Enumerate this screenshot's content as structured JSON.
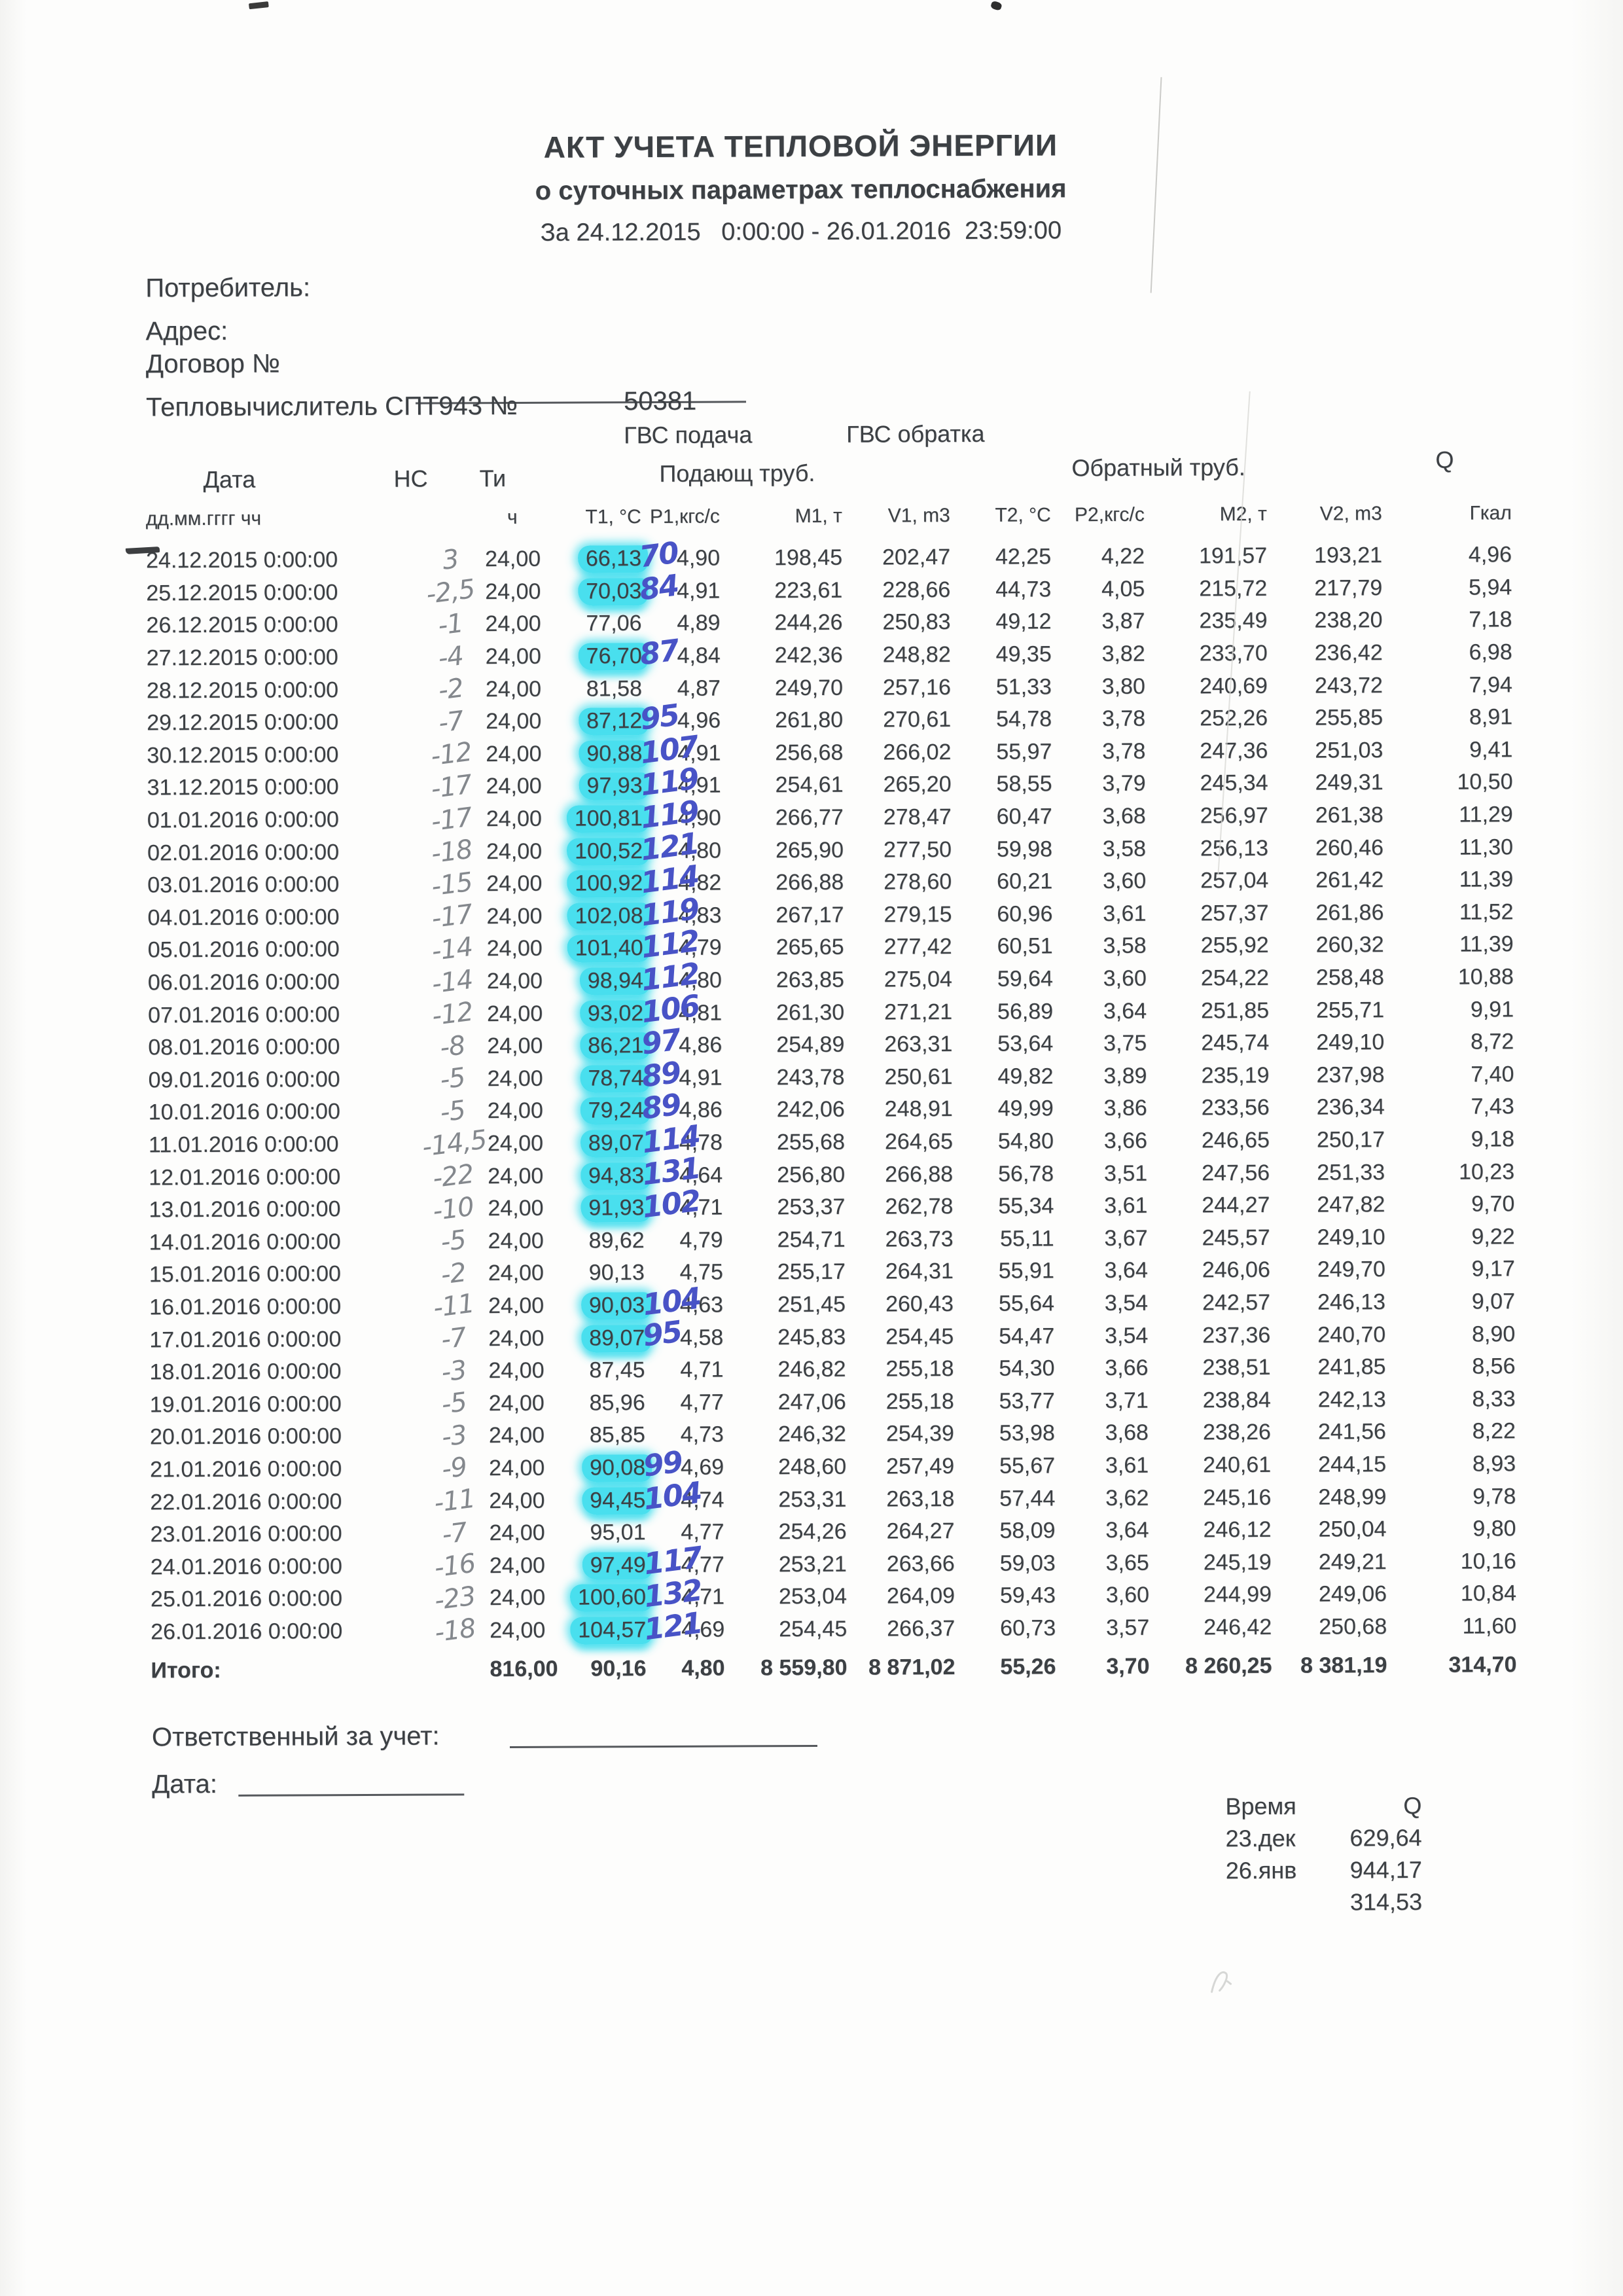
{
  "header": {
    "title": "АКТ УЧЕТА ТЕПЛОВОЙ ЭНЕРГИИ",
    "subtitle": "о суточных параметрах теплоснабжения",
    "period": "За 24.12.2015   0:00:00 - 26.01.2016  23:59:00"
  },
  "info": {
    "consumer_label": "Потребитель:",
    "address_label": "Адрес:",
    "contract_label": "Договор №",
    "calculator_label": "Тепловычислитель СПТ943 №",
    "calculator_number": "50381",
    "gvs_supply": "ГВС подача",
    "gvs_return": "ГВС обратка"
  },
  "table": {
    "group_headers": {
      "date": "Дата",
      "ns": "НС",
      "ti": "Ти",
      "supply": "Подающ труб.",
      "return": "Обратный труб.",
      "q": "Q"
    },
    "unit_headers": {
      "date": "дд.мм.гггг чч",
      "ti": "ч",
      "t1": "Т1, °С",
      "p1": "Р1,кгс/с",
      "m1": "М1, т",
      "v1": "V1, m3",
      "t2": "Т2, °С",
      "p2": "Р2,кгс/с",
      "m2": "М2, т",
      "v2": "V2, m3",
      "q": "Гкал"
    },
    "rows": [
      {
        "date": "24.12.2015 0:00:00",
        "ns": "3",
        "ti": "24,00",
        "t1": "66,13",
        "hl": true,
        "note": "70",
        "p1": "4,90",
        "m1": "198,45",
        "v1": "202,47",
        "t2": "42,25",
        "p2": "4,22",
        "m2": "191,57",
        "v2": "193,21",
        "q": "4,96"
      },
      {
        "date": "25.12.2015 0:00:00",
        "ns": "-2,5",
        "ti": "24,00",
        "t1": "70,03",
        "hl": true,
        "note": "84",
        "p1": "4,91",
        "m1": "223,61",
        "v1": "228,66",
        "t2": "44,73",
        "p2": "4,05",
        "m2": "215,72",
        "v2": "217,79",
        "q": "5,94"
      },
      {
        "date": "26.12.2015 0:00:00",
        "ns": "-1",
        "ti": "24,00",
        "t1": "77,06",
        "hl": false,
        "note": "",
        "p1": "4,89",
        "m1": "244,26",
        "v1": "250,83",
        "t2": "49,12",
        "p2": "3,87",
        "m2": "235,49",
        "v2": "238,20",
        "q": "7,18"
      },
      {
        "date": "27.12.2015 0:00:00",
        "ns": "-4",
        "ti": "24,00",
        "t1": "76,70",
        "hl": true,
        "note": "87",
        "p1": "4,84",
        "m1": "242,36",
        "v1": "248,82",
        "t2": "49,35",
        "p2": "3,82",
        "m2": "233,70",
        "v2": "236,42",
        "q": "6,98"
      },
      {
        "date": "28.12.2015 0:00:00",
        "ns": "-2",
        "ti": "24,00",
        "t1": "81,58",
        "hl": false,
        "note": "",
        "p1": "4,87",
        "m1": "249,70",
        "v1": "257,16",
        "t2": "51,33",
        "p2": "3,80",
        "m2": "240,69",
        "v2": "243,72",
        "q": "7,94"
      },
      {
        "date": "29.12.2015 0:00:00",
        "ns": "-7",
        "ti": "24,00",
        "t1": "87,12",
        "hl": true,
        "note": "95",
        "p1": "4,96",
        "m1": "261,80",
        "v1": "270,61",
        "t2": "54,78",
        "p2": "3,78",
        "m2": "252,26",
        "v2": "255,85",
        "q": "8,91"
      },
      {
        "date": "30.12.2015 0:00:00",
        "ns": "-12",
        "ti": "24,00",
        "t1": "90,88",
        "hl": true,
        "note": "107",
        "p1": "4,91",
        "m1": "256,68",
        "v1": "266,02",
        "t2": "55,97",
        "p2": "3,78",
        "m2": "247,36",
        "v2": "251,03",
        "q": "9,41"
      },
      {
        "date": "31.12.2015 0:00:00",
        "ns": "-17",
        "ti": "24,00",
        "t1": "97,93",
        "hl": true,
        "note": "119",
        "p1": "4,91",
        "m1": "254,61",
        "v1": "265,20",
        "t2": "58,55",
        "p2": "3,79",
        "m2": "245,34",
        "v2": "249,31",
        "q": "10,50"
      },
      {
        "date": "01.01.2016 0:00:00",
        "ns": "-17",
        "ti": "24,00",
        "t1": "100,81",
        "hl": true,
        "note": "119",
        "p1": "4,90",
        "m1": "266,77",
        "v1": "278,47",
        "t2": "60,47",
        "p2": "3,68",
        "m2": "256,97",
        "v2": "261,38",
        "q": "11,29"
      },
      {
        "date": "02.01.2016 0:00:00",
        "ns": "-18",
        "ti": "24,00",
        "t1": "100,52",
        "hl": true,
        "note": "121",
        "p1": "4,80",
        "m1": "265,90",
        "v1": "277,50",
        "t2": "59,98",
        "p2": "3,58",
        "m2": "256,13",
        "v2": "260,46",
        "q": "11,30"
      },
      {
        "date": "03.01.2016 0:00:00",
        "ns": "-15",
        "ti": "24,00",
        "t1": "100,92",
        "hl": true,
        "note": "114",
        "p1": "4,82",
        "m1": "266,88",
        "v1": "278,60",
        "t2": "60,21",
        "p2": "3,60",
        "m2": "257,04",
        "v2": "261,42",
        "q": "11,39"
      },
      {
        "date": "04.01.2016 0:00:00",
        "ns": "-17",
        "ti": "24,00",
        "t1": "102,08",
        "hl": true,
        "note": "119",
        "p1": "4,83",
        "m1": "267,17",
        "v1": "279,15",
        "t2": "60,96",
        "p2": "3,61",
        "m2": "257,37",
        "v2": "261,86",
        "q": "11,52"
      },
      {
        "date": "05.01.2016 0:00:00",
        "ns": "-14",
        "ti": "24,00",
        "t1": "101,40",
        "hl": true,
        "note": "112",
        "p1": "4,79",
        "m1": "265,65",
        "v1": "277,42",
        "t2": "60,51",
        "p2": "3,58",
        "m2": "255,92",
        "v2": "260,32",
        "q": "11,39"
      },
      {
        "date": "06.01.2016 0:00:00",
        "ns": "-14",
        "ti": "24,00",
        "t1": "98,94",
        "hl": true,
        "note": "112",
        "p1": "4,80",
        "m1": "263,85",
        "v1": "275,04",
        "t2": "59,64",
        "p2": "3,60",
        "m2": "254,22",
        "v2": "258,48",
        "q": "10,88"
      },
      {
        "date": "07.01.2016 0:00:00",
        "ns": "-12",
        "ti": "24,00",
        "t1": "93,02",
        "hl": true,
        "note": "106",
        "p1": "4,81",
        "m1": "261,30",
        "v1": "271,21",
        "t2": "56,89",
        "p2": "3,64",
        "m2": "251,85",
        "v2": "255,71",
        "q": "9,91"
      },
      {
        "date": "08.01.2016 0:00:00",
        "ns": "-8",
        "ti": "24,00",
        "t1": "86,21",
        "hl": true,
        "note": "97",
        "p1": "4,86",
        "m1": "254,89",
        "v1": "263,31",
        "t2": "53,64",
        "p2": "3,75",
        "m2": "245,74",
        "v2": "249,10",
        "q": "8,72"
      },
      {
        "date": "09.01.2016 0:00:00",
        "ns": "-5",
        "ti": "24,00",
        "t1": "78,74",
        "hl": true,
        "note": "89",
        "p1": "4,91",
        "m1": "243,78",
        "v1": "250,61",
        "t2": "49,82",
        "p2": "3,89",
        "m2": "235,19",
        "v2": "237,98",
        "q": "7,40"
      },
      {
        "date": "10.01.2016 0:00:00",
        "ns": "-5",
        "ti": "24,00",
        "t1": "79,24",
        "hl": true,
        "note": "89",
        "p1": "4,86",
        "m1": "242,06",
        "v1": "248,91",
        "t2": "49,99",
        "p2": "3,86",
        "m2": "233,56",
        "v2": "236,34",
        "q": "7,43"
      },
      {
        "date": "11.01.2016 0:00:00",
        "ns": "-14,5",
        "ti": "24,00",
        "t1": "89,07",
        "hl": true,
        "note": "114",
        "p1": "4,78",
        "m1": "255,68",
        "v1": "264,65",
        "t2": "54,80",
        "p2": "3,66",
        "m2": "246,65",
        "v2": "250,17",
        "q": "9,18"
      },
      {
        "date": "12.01.2016 0:00:00",
        "ns": "-22",
        "ti": "24,00",
        "t1": "94,83",
        "hl": true,
        "note": "131",
        "p1": "4,64",
        "m1": "256,80",
        "v1": "266,88",
        "t2": "56,78",
        "p2": "3,51",
        "m2": "247,56",
        "v2": "251,33",
        "q": "10,23"
      },
      {
        "date": "13.01.2016 0:00:00",
        "ns": "-10",
        "ti": "24,00",
        "t1": "91,93",
        "hl": true,
        "note": "102",
        "p1": "4,71",
        "m1": "253,37",
        "v1": "262,78",
        "t2": "55,34",
        "p2": "3,61",
        "m2": "244,27",
        "v2": "247,82",
        "q": "9,70"
      },
      {
        "date": "14.01.2016 0:00:00",
        "ns": "-5",
        "ti": "24,00",
        "t1": "89,62",
        "hl": false,
        "note": "",
        "p1": "4,79",
        "m1": "254,71",
        "v1": "263,73",
        "t2": "55,11",
        "p2": "3,67",
        "m2": "245,57",
        "v2": "249,10",
        "q": "9,22"
      },
      {
        "date": "15.01.2016 0:00:00",
        "ns": "-2",
        "ti": "24,00",
        "t1": "90,13",
        "hl": false,
        "note": "",
        "p1": "4,75",
        "m1": "255,17",
        "v1": "264,31",
        "t2": "55,91",
        "p2": "3,64",
        "m2": "246,06",
        "v2": "249,70",
        "q": "9,17"
      },
      {
        "date": "16.01.2016 0:00:00",
        "ns": "-11",
        "ti": "24,00",
        "t1": "90,03",
        "hl": true,
        "note": "104",
        "p1": "4,63",
        "m1": "251,45",
        "v1": "260,43",
        "t2": "55,64",
        "p2": "3,54",
        "m2": "242,57",
        "v2": "246,13",
        "q": "9,07"
      },
      {
        "date": "17.01.2016 0:00:00",
        "ns": "-7",
        "ti": "24,00",
        "t1": "89,07",
        "hl": true,
        "note": "95",
        "p1": "4,58",
        "m1": "245,83",
        "v1": "254,45",
        "t2": "54,47",
        "p2": "3,54",
        "m2": "237,36",
        "v2": "240,70",
        "q": "8,90"
      },
      {
        "date": "18.01.2016 0:00:00",
        "ns": "-3",
        "ti": "24,00",
        "t1": "87,45",
        "hl": false,
        "note": "",
        "p1": "4,71",
        "m1": "246,82",
        "v1": "255,18",
        "t2": "54,30",
        "p2": "3,66",
        "m2": "238,51",
        "v2": "241,85",
        "q": "8,56"
      },
      {
        "date": "19.01.2016 0:00:00",
        "ns": "-5",
        "ti": "24,00",
        "t1": "85,96",
        "hl": false,
        "note": "",
        "p1": "4,77",
        "m1": "247,06",
        "v1": "255,18",
        "t2": "53,77",
        "p2": "3,71",
        "m2": "238,84",
        "v2": "242,13",
        "q": "8,33"
      },
      {
        "date": "20.01.2016 0:00:00",
        "ns": "-3",
        "ti": "24,00",
        "t1": "85,85",
        "hl": false,
        "note": "",
        "p1": "4,73",
        "m1": "246,32",
        "v1": "254,39",
        "t2": "53,98",
        "p2": "3,68",
        "m2": "238,26",
        "v2": "241,56",
        "q": "8,22"
      },
      {
        "date": "21.01.2016 0:00:00",
        "ns": "-9",
        "ti": "24,00",
        "t1": "90,08",
        "hl": true,
        "note": "99",
        "p1": "4,69",
        "m1": "248,60",
        "v1": "257,49",
        "t2": "55,67",
        "p2": "3,61",
        "m2": "240,61",
        "v2": "244,15",
        "q": "8,93"
      },
      {
        "date": "22.01.2016 0:00:00",
        "ns": "-11",
        "ti": "24,00",
        "t1": "94,45",
        "hl": true,
        "note": "104",
        "p1": "4,74",
        "m1": "253,31",
        "v1": "263,18",
        "t2": "57,44",
        "p2": "3,62",
        "m2": "245,16",
        "v2": "248,99",
        "q": "9,78"
      },
      {
        "date": "23.01.2016 0:00:00",
        "ns": "-7",
        "ti": "24,00",
        "t1": "95,01",
        "hl": false,
        "note": "",
        "p1": "4,77",
        "m1": "254,26",
        "v1": "264,27",
        "t2": "58,09",
        "p2": "3,64",
        "m2": "246,12",
        "v2": "250,04",
        "q": "9,80"
      },
      {
        "date": "24.01.2016 0:00:00",
        "ns": "-16",
        "ti": "24,00",
        "t1": "97,49",
        "hl": true,
        "note": "117",
        "p1": "4,77",
        "m1": "253,21",
        "v1": "263,66",
        "t2": "59,03",
        "p2": "3,65",
        "m2": "245,19",
        "v2": "249,21",
        "q": "10,16"
      },
      {
        "date": "25.01.2016 0:00:00",
        "ns": "-23",
        "ti": "24,00",
        "t1": "100,60",
        "hl": true,
        "note": "132",
        "p1": "4,71",
        "m1": "253,04",
        "v1": "264,09",
        "t2": "59,43",
        "p2": "3,60",
        "m2": "244,99",
        "v2": "249,06",
        "q": "10,84"
      },
      {
        "date": "26.01.2016 0:00:00",
        "ns": "-18",
        "ti": "24,00",
        "t1": "104,57",
        "hl": true,
        "note": "121",
        "p1": "4,69",
        "m1": "254,45",
        "v1": "266,37",
        "t2": "60,73",
        "p2": "3,57",
        "m2": "246,42",
        "v2": "250,68",
        "q": "11,60"
      }
    ],
    "total": {
      "label": "Итого:",
      "ti": "816,00",
      "t1": "90,16",
      "p1": "4,80",
      "m1": "8 559,80",
      "v1": "8 871,02",
      "t2": "55,26",
      "p2": "3,70",
      "m2": "8 260,25",
      "v2": "8 381,19",
      "q": "314,70"
    }
  },
  "footer": {
    "responsible_label": "Ответственный за учет:",
    "date_label": "Дата:",
    "summary": {
      "time_header": "Время",
      "q_header": "Q",
      "rows": [
        {
          "time": "23.дек",
          "q": "629,64"
        },
        {
          "time": "26.янв",
          "q": "944,17"
        },
        {
          "time": "",
          "q": "314,53"
        }
      ]
    }
  },
  "colors": {
    "highlight": "#49dfee",
    "pen_blue": "#4853c6",
    "pencil_grey": "#84888d",
    "print": "#3c4044"
  }
}
